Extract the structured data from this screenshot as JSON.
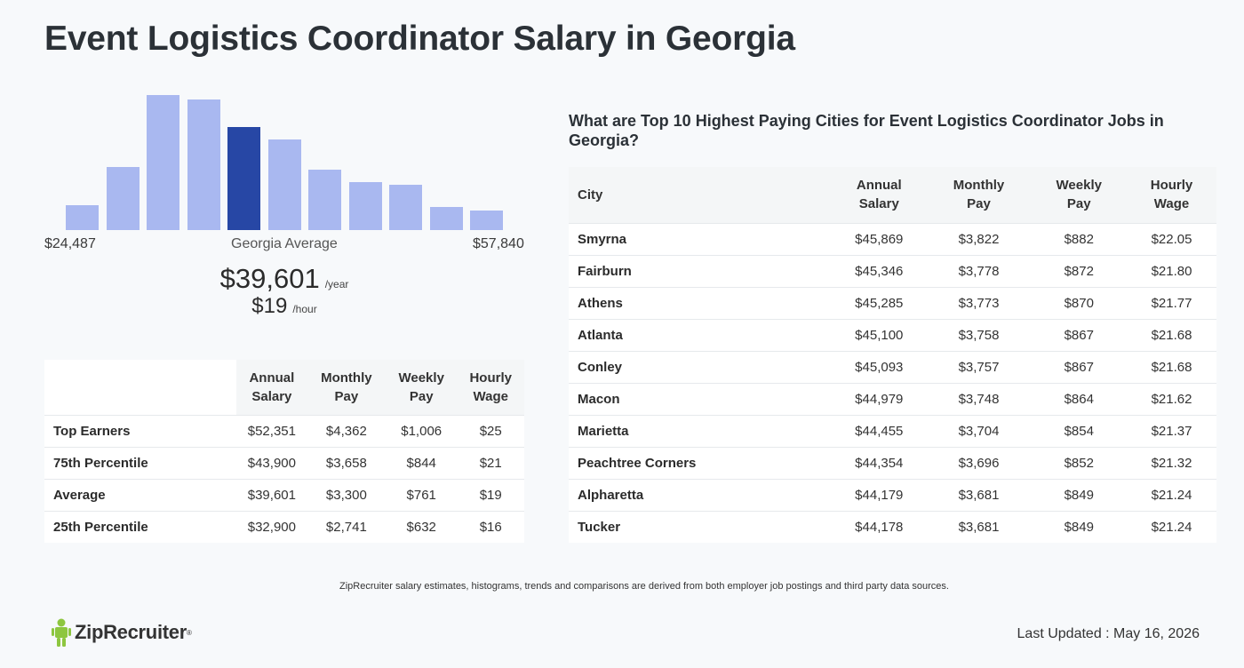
{
  "page_title": "Event Logistics Coordinator Salary in Georgia",
  "histogram": {
    "bar_values": [
      26,
      65,
      140,
      135,
      107,
      94,
      63,
      50,
      47,
      24,
      20
    ],
    "highlight_index": 4,
    "min_label": "$24,487",
    "mid_label": "Georgia Average",
    "max_label": "$57,840",
    "bar_color": "#a9b8f0",
    "highlight_color": "#2747a5"
  },
  "average": {
    "annual": "$39,601",
    "annual_unit": "/year",
    "hourly": "$19",
    "hourly_unit": "/hour"
  },
  "percentile_table": {
    "headers": [
      [
        "Annual",
        "Salary"
      ],
      [
        "Monthly",
        "Pay"
      ],
      [
        "Weekly",
        "Pay"
      ],
      [
        "Hourly",
        "Wage"
      ]
    ],
    "rows": [
      {
        "label": "Top Earners",
        "annual": "$52,351",
        "monthly": "$4,362",
        "weekly": "$1,006",
        "hourly": "$25"
      },
      {
        "label": "75th Percentile",
        "annual": "$43,900",
        "monthly": "$3,658",
        "weekly": "$844",
        "hourly": "$21"
      },
      {
        "label": "Average",
        "annual": "$39,601",
        "monthly": "$3,300",
        "weekly": "$761",
        "hourly": "$19"
      },
      {
        "label": "25th Percentile",
        "annual": "$32,900",
        "monthly": "$2,741",
        "weekly": "$632",
        "hourly": "$16"
      }
    ]
  },
  "cities": {
    "heading": "What are Top 10 Highest Paying Cities for Event Logistics Coordinator Jobs in Georgia?",
    "headers": {
      "city": "City",
      "annual": [
        "Annual",
        "Salary"
      ],
      "monthly": [
        "Monthly",
        "Pay"
      ],
      "weekly": [
        "Weekly",
        "Pay"
      ],
      "hourly": [
        "Hourly",
        "Wage"
      ]
    },
    "rows": [
      {
        "city": "Smyrna",
        "annual": "$45,869",
        "monthly": "$3,822",
        "weekly": "$882",
        "hourly": "$22.05"
      },
      {
        "city": "Fairburn",
        "annual": "$45,346",
        "monthly": "$3,778",
        "weekly": "$872",
        "hourly": "$21.80"
      },
      {
        "city": "Athens",
        "annual": "$45,285",
        "monthly": "$3,773",
        "weekly": "$870",
        "hourly": "$21.77"
      },
      {
        "city": "Atlanta",
        "annual": "$45,100",
        "monthly": "$3,758",
        "weekly": "$867",
        "hourly": "$21.68"
      },
      {
        "city": "Conley",
        "annual": "$45,093",
        "monthly": "$3,757",
        "weekly": "$867",
        "hourly": "$21.68"
      },
      {
        "city": "Macon",
        "annual": "$44,979",
        "monthly": "$3,748",
        "weekly": "$864",
        "hourly": "$21.62"
      },
      {
        "city": "Marietta",
        "annual": "$44,455",
        "monthly": "$3,704",
        "weekly": "$854",
        "hourly": "$21.37"
      },
      {
        "city": "Peachtree Corners",
        "annual": "$44,354",
        "monthly": "$3,696",
        "weekly": "$852",
        "hourly": "$21.32"
      },
      {
        "city": "Alpharetta",
        "annual": "$44,179",
        "monthly": "$3,681",
        "weekly": "$849",
        "hourly": "$21.24"
      },
      {
        "city": "Tucker",
        "annual": "$44,178",
        "monthly": "$3,681",
        "weekly": "$849",
        "hourly": "$21.24"
      }
    ]
  },
  "footer": {
    "disclaimer": "ZipRecruiter salary estimates, histograms, trends and comparisons are derived from both employer job postings and third party data sources.",
    "logo_text": "ZipRecruiter",
    "logo_color": "#8dc63f",
    "last_updated": "Last Updated : May 16, 2026"
  }
}
